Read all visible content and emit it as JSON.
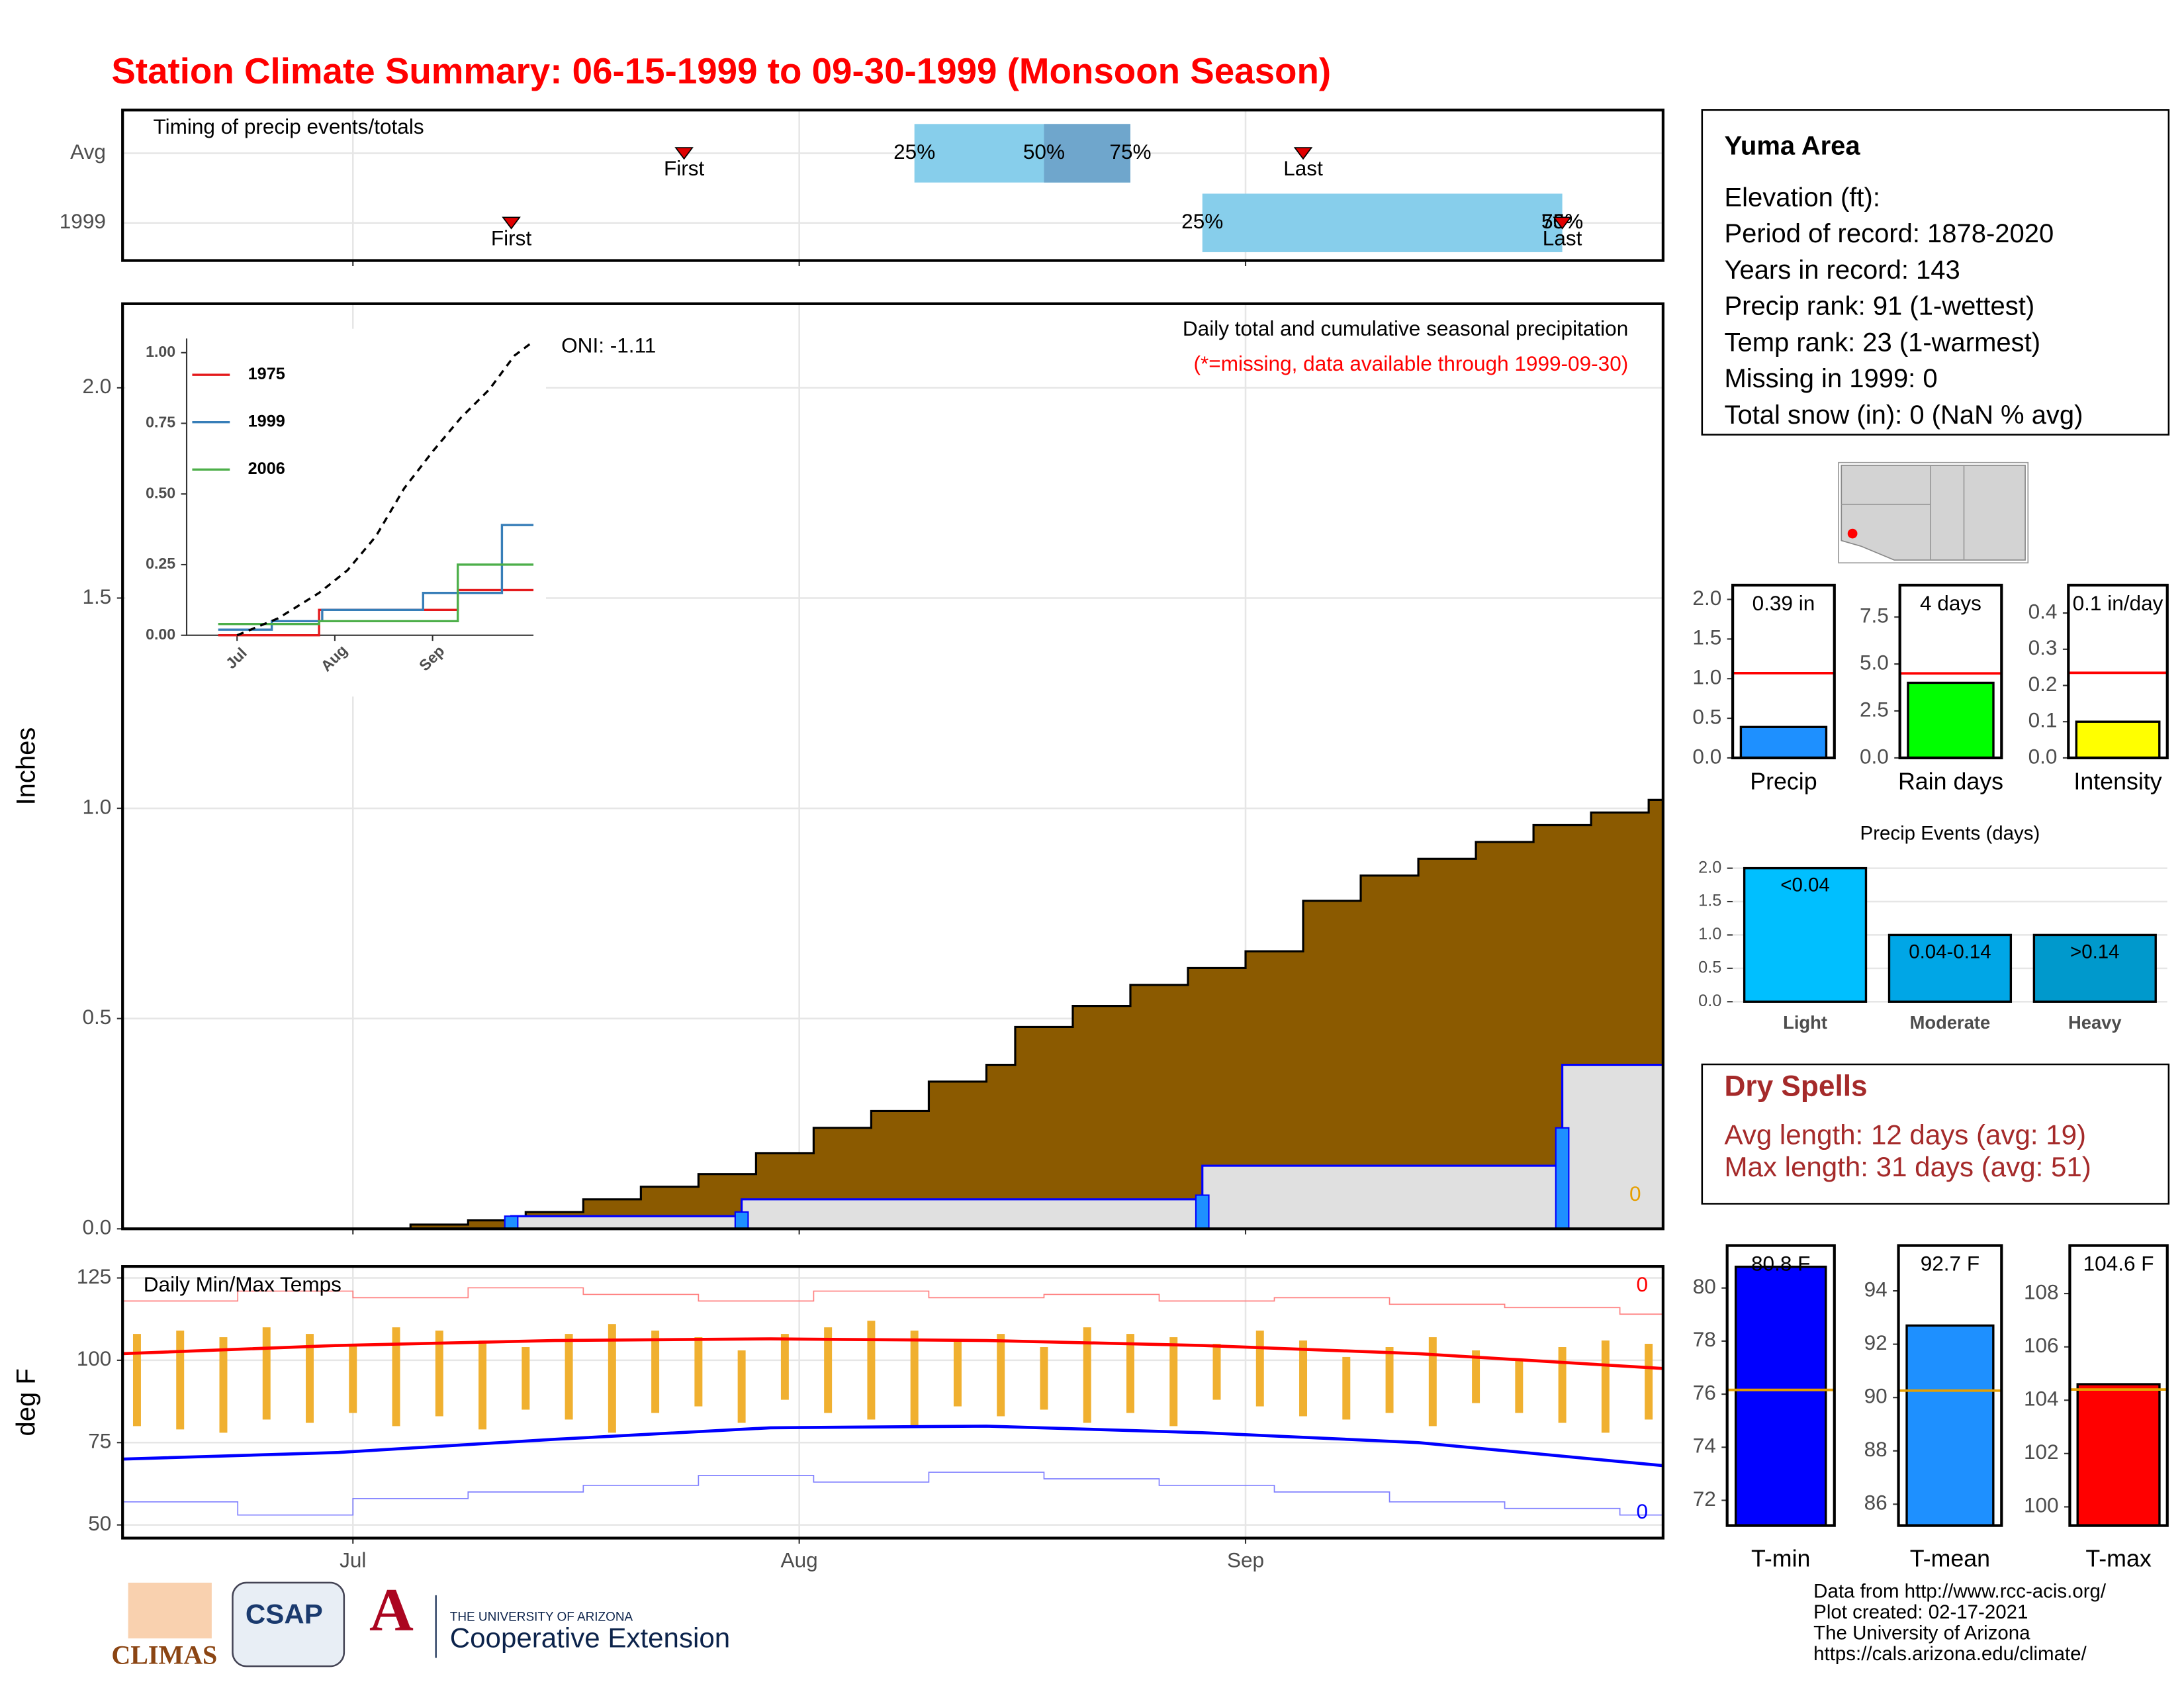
{
  "header": {
    "title": "Station Climate Summary: 06-15-1999 to 09-30-1999 (Monsoon Season)"
  },
  "station_info": {
    "name": "Yuma Area",
    "lines": [
      "Elevation (ft):",
      "Period of record: 1878-2020",
      "Years in record: 143",
      "Precip rank: 91 (1-wettest)",
      "Temp rank: 23 (1-warmest)",
      "Missing in 1999: 0",
      "Total snow (in): 0 (NaN % avg)"
    ]
  },
  "dry_spells": {
    "title": "Dry Spells",
    "lines": [
      "Avg length: 12 days (avg: 19)",
      "Max length: 31 days (avg: 51)"
    ]
  },
  "footer": {
    "credits": [
      "Data from http://www.rcc-acis.org/",
      "Plot created: 02-17-2021",
      "The University of Arizona",
      "https://cals.arizona.edu/climate/"
    ],
    "logos": [
      "CLIMAS",
      "CSAP",
      "THE UNIVERSITY OF ARIZONA",
      "Cooperative Extension"
    ]
  },
  "chart_data": [
    {
      "type": "timing",
      "title": "Timing of precip events/totals",
      "rows": [
        "Avg",
        "1999"
      ],
      "xlim": [
        0,
        107
      ],
      "xticks": [
        16,
        47,
        78
      ],
      "grid": true,
      "first": {
        "name": "First",
        "values": [
          39,
          27
        ]
      },
      "last": {
        "name": "Last",
        "values": [
          82,
          100
        ]
      },
      "quartiles": {
        "names": [
          "25%",
          "50%",
          "75%"
        ],
        "values": [
          [
            55,
            64,
            70
          ],
          [
            75,
            100,
            100
          ]
        ]
      },
      "box_color": "#87ceeb",
      "inner_color": "#6fa6cc",
      "marker_color": "#e00000"
    },
    {
      "type": "precip",
      "title": "Daily total and cumulative seasonal precipitation",
      "subtitle": "(*=missing, data available through 1999-09-30)",
      "annotation": "ONI: -1.11",
      "ylabel": "Inches",
      "missing": 0,
      "xlim": [
        0,
        107
      ],
      "ylim": [
        0,
        2.2
      ],
      "xticks": [
        16,
        47,
        78
      ],
      "yticks": [
        {
          "value": 0,
          "label": "0.0"
        },
        0.5,
        {
          "value": 1,
          "label": "1.0"
        },
        1.5,
        {
          "value": 2,
          "label": "2.0"
        }
      ],
      "grid": true,
      "avg_cumulative": {
        "color": "#8b5a00",
        "x": [
          0,
          15,
          20,
          24,
          28,
          32,
          36,
          40,
          44,
          48,
          52,
          56,
          60,
          62,
          66,
          70,
          74,
          78,
          82,
          86,
          90,
          94,
          98,
          102,
          106,
          107
        ],
        "values": [
          0,
          0,
          0.01,
          0.02,
          0.04,
          0.07,
          0.1,
          0.13,
          0.18,
          0.24,
          0.28,
          0.35,
          0.39,
          0.48,
          0.53,
          0.58,
          0.62,
          0.66,
          0.78,
          0.84,
          0.88,
          0.92,
          0.96,
          0.99,
          1.02,
          1.05
        ]
      },
      "daily": {
        "color": "#1e90ff",
        "outline": "#0000ff",
        "fill": "#e0e0e0",
        "x": [
          27,
          43,
          75,
          100
        ],
        "values": [
          0.03,
          0.04,
          0.08,
          0.24
        ]
      }
    },
    {
      "type": "line",
      "xlim": [
        0,
        110
      ],
      "ylim": [
        0,
        1.05
      ],
      "xticks": [
        {
          "value": 16,
          "label": "Jul"
        },
        {
          "value": 47,
          "label": "Aug"
        },
        {
          "value": 78,
          "label": "Sep"
        }
      ],
      "yticks": [
        {
          "value": 0,
          "label": "0.00"
        },
        0.25,
        {
          "value": 0.5,
          "label": "0.50"
        },
        0.75,
        {
          "value": 1,
          "label": "1.00"
        }
      ],
      "series": [
        {
          "name": "1975",
          "color": "#e41a1c",
          "x": [
            10,
            42,
            42,
            86,
            86,
            110
          ],
          "values": [
            0,
            0,
            0.09,
            0.09,
            0.16,
            0.16
          ]
        },
        {
          "name": "1999",
          "color": "#377eb8",
          "x": [
            10,
            27,
            27,
            43,
            43,
            75,
            75,
            100,
            100,
            110
          ],
          "values": [
            0.02,
            0.02,
            0.05,
            0.05,
            0.09,
            0.09,
            0.15,
            0.15,
            0.39,
            0.39
          ]
        },
        {
          "name": "2006",
          "color": "#4daf4a",
          "x": [
            10,
            42,
            42,
            86,
            86,
            110
          ],
          "values": [
            0.04,
            0.04,
            0.05,
            0.05,
            0.25,
            0.25
          ]
        }
      ],
      "average": {
        "color": "#000000",
        "x": [
          16,
          29,
          42,
          51,
          60,
          69,
          78,
          87,
          96,
          104,
          110
        ],
        "values": [
          0,
          0.06,
          0.15,
          0.23,
          0.35,
          0.52,
          0.65,
          0.77,
          0.87,
          0.99,
          1.04
        ]
      }
    },
    {
      "type": "temps",
      "title": "Daily Min/Max Temps",
      "ylabel": "deg F",
      "missing_max": 0,
      "missing_min": 0,
      "xlim": [
        0,
        107
      ],
      "ylim": [
        46,
        128.5
      ],
      "xticks": [
        {
          "value": 16,
          "label": "Jul"
        },
        {
          "value": 47,
          "label": "Aug"
        },
        {
          "value": 78,
          "label": "Sep"
        }
      ],
      "yticks": [
        50,
        75,
        100,
        125
      ],
      "grid": true,
      "record_max": {
        "color": "#ff8080",
        "x": [
          0,
          8,
          16,
          24,
          32,
          40,
          48,
          56,
          64,
          72,
          80,
          88,
          96,
          104,
          107
        ],
        "values": [
          118,
          121,
          119,
          122,
          120,
          118,
          121,
          119,
          120,
          118,
          119,
          117,
          116,
          114,
          110
        ]
      },
      "record_min": {
        "color": "#8080ff",
        "x": [
          0,
          8,
          16,
          24,
          32,
          40,
          48,
          56,
          64,
          72,
          80,
          88,
          96,
          104,
          107
        ],
        "values": [
          57,
          53,
          58,
          60,
          62,
          65,
          63,
          66,
          64,
          62,
          60,
          57,
          55,
          53,
          51
        ]
      },
      "avg_max": {
        "color": "#ff0000",
        "x": [
          0,
          15,
          30,
          45,
          60,
          75,
          90,
          107
        ],
        "values": [
          102,
          104.5,
          106,
          106.5,
          106,
          104.5,
          102,
          97.5
        ]
      },
      "avg_min": {
        "color": "#0000ff",
        "x": [
          0,
          15,
          30,
          45,
          60,
          75,
          90,
          107
        ],
        "values": [
          70,
          72,
          76,
          79.5,
          80,
          78,
          75,
          68
        ]
      },
      "daily": {
        "color": "#f0b030",
        "x": [
          1,
          4,
          7,
          10,
          13,
          16,
          19,
          22,
          25,
          28,
          31,
          34,
          37,
          40,
          43,
          46,
          49,
          52,
          55,
          58,
          61,
          64,
          67,
          70,
          73,
          76,
          79,
          82,
          85,
          88,
          91,
          94,
          97,
          100,
          103,
          106
        ],
        "high": [
          108,
          109,
          107,
          110,
          108,
          105,
          110,
          109,
          106,
          104,
          108,
          111,
          109,
          107,
          103,
          108,
          110,
          112,
          109,
          106,
          108,
          104,
          110,
          108,
          107,
          105,
          109,
          106,
          101,
          104,
          107,
          103,
          100,
          104,
          106,
          105
        ],
        "low": [
          80,
          79,
          78,
          82,
          81,
          84,
          80,
          83,
          79,
          85,
          82,
          78,
          84,
          86,
          81,
          88,
          84,
          82,
          80,
          86,
          83,
          85,
          81,
          84,
          80,
          88,
          86,
          83,
          82,
          84,
          80,
          87,
          84,
          81,
          78,
          82
        ]
      }
    },
    {
      "type": "bar",
      "categories": [
        "Precip"
      ],
      "values": [
        0.39
      ],
      "value_labels": [
        "0.39 in"
      ],
      "average": 1.07,
      "average_color": "#ff0000",
      "color": "#1e90ff",
      "ylim": [
        0,
        2.18
      ],
      "yticks": [
        {
          "value": 0,
          "label": "0.0"
        },
        0.5,
        {
          "value": 1,
          "label": "1.0"
        },
        1.5,
        {
          "value": 2,
          "label": "2.0"
        }
      ]
    },
    {
      "type": "bar",
      "categories": [
        "Rain days"
      ],
      "values": [
        4
      ],
      "value_labels": [
        "4 days"
      ],
      "average": 4.5,
      "average_color": "#ff0000",
      "color": "#00ff00",
      "ylim": [
        0,
        9.2
      ],
      "yticks": [
        {
          "value": 0,
          "label": "0.0"
        },
        2.5,
        {
          "value": 5,
          "label": "5.0"
        },
        7.5
      ]
    },
    {
      "type": "bar",
      "categories": [
        "Intensity"
      ],
      "values": [
        0.1
      ],
      "value_labels": [
        "0.1 in/day"
      ],
      "average": 0.235,
      "average_color": "#ff0000",
      "color": "#ffff00",
      "ylim": [
        0,
        0.477
      ],
      "yticks": [
        {
          "value": 0,
          "label": "0.0"
        },
        0.1,
        0.2,
        0.3,
        0.4
      ]
    },
    {
      "type": "bar",
      "title": "Precip Events (days)",
      "categories": [
        "Light",
        "Moderate",
        "Heavy"
      ],
      "ranges": [
        "<0.04",
        "0.04-0.14",
        ">0.14"
      ],
      "values": [
        2,
        1,
        1
      ],
      "colors": [
        "#00bfff",
        "#00a6e6",
        "#0099cc"
      ],
      "ylim": [
        0,
        2.15
      ],
      "yticks": [
        {
          "value": 0,
          "label": "0.0"
        },
        0.5,
        {
          "value": 1,
          "label": "1.0"
        },
        1.5,
        {
          "value": 2,
          "label": "2.0"
        }
      ],
      "grid": true
    },
    {
      "type": "bar",
      "categories": [
        "T-min"
      ],
      "values": [
        80.8
      ],
      "value_labels": [
        "80.8 F"
      ],
      "average": 76.16,
      "average_color": "#e69f00",
      "color": "#0000ff",
      "ylim": [
        71.05,
        81.6
      ],
      "yticks": [
        72,
        74,
        76,
        78,
        80
      ]
    },
    {
      "type": "bar",
      "categories": [
        "T-mean"
      ],
      "values": [
        92.7
      ],
      "value_labels": [
        "92.7 F"
      ],
      "average": 90.26,
      "average_color": "#e69f00",
      "color": "#1e90ff",
      "ylim": [
        85.2,
        95.7
      ],
      "yticks": [
        86,
        88,
        90,
        92,
        94
      ]
    },
    {
      "type": "bar",
      "categories": [
        "T-max"
      ],
      "values": [
        104.6
      ],
      "value_labels": [
        "104.6 F"
      ],
      "average": 104.4,
      "average_color": "#e69f00",
      "color": "#ff0000",
      "ylim": [
        99.3,
        109.8
      ],
      "yticks": [
        100,
        102,
        104,
        106,
        108
      ]
    }
  ]
}
